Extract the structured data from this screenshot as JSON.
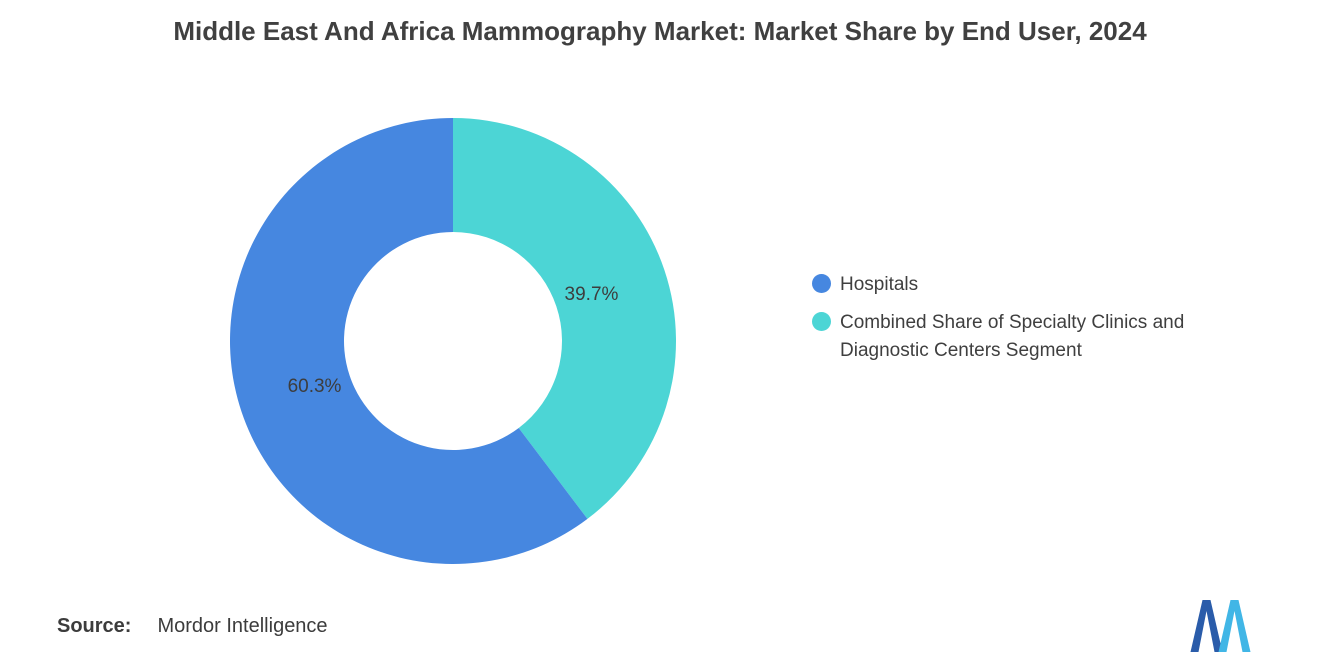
{
  "title": "Middle East And Africa Mammography Market: Market Share by End User, 2024",
  "chart_data": {
    "type": "pie",
    "subtype": "donut",
    "title": "Middle East And Africa Mammography Market: Market Share by End User, 2024",
    "categories": [
      "Hospitals",
      "Combined Share of Specialty Clinics and Diagnostic Centers Segment"
    ],
    "values": [
      60.3,
      39.7
    ],
    "labels": [
      "60.3%",
      "39.7%"
    ],
    "colors": [
      "#4687E0",
      "#4CD5D5"
    ],
    "unit": "percent",
    "start_angle_deg": 0,
    "direction": "counterclockwise",
    "inner_radius_ratio": 0.49,
    "legend_position": "right",
    "label_color": "#3d3d3d",
    "grid": false
  },
  "source": {
    "label": "Source:",
    "value": "Mordor Intelligence"
  },
  "logo": {
    "name": "mordor-intelligence-logo",
    "dark_color": "#2A5CAA",
    "light_color": "#41B6E6"
  }
}
